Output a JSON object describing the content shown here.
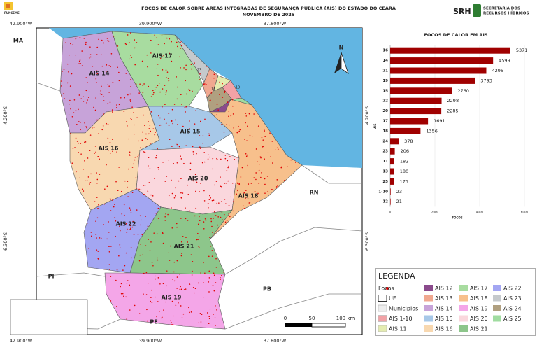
{
  "header": {
    "title": "FOCOS DE CALOR SOBRE ÁREAS INTEGRADAS DE SEGURANÇA PUBLICA (AIS) DO ESTADO DO CEARÁ",
    "subtitle": "NOVEMBRO DE 2025",
    "logo_left": "FUNCEME",
    "logo_right": "SRH",
    "logo_right_text": [
      "SECRETARIA DOS",
      "RECURSOS HÍDRICOS"
    ]
  },
  "map": {
    "coords_x": [
      "42.900°W",
      "39.900°W",
      "37.800°W"
    ],
    "coords_y": [
      "4.200°S",
      "6.300°S"
    ],
    "states": [
      "MA",
      "PI",
      "PE",
      "PB",
      "RN"
    ],
    "ais_labels": [
      "AIS 14",
      "AIS 17",
      "AIS 16",
      "AIS 15",
      "AIS 20",
      "AIS 18",
      "AIS 22",
      "AIS 21",
      "AIS 19"
    ],
    "ais_small": [
      "23",
      "11",
      "10"
    ],
    "north": "N",
    "scale": [
      "0",
      "50",
      "100 km"
    ],
    "credits": [
      "Sistema de Coordenadas",
      "Geográficas",
      "Datum Sirgas 2000",
      "Fonte: INPE-IBGE",
      "Elaboração: FUNCEME"
    ]
  },
  "legend": {
    "title": "LEGENDA",
    "items": [
      {
        "name": "Focos",
        "color": "#e00000"
      },
      {
        "name": "UF",
        "color": "#ffffff"
      },
      {
        "name": "Municipios",
        "color": "#eeeeee"
      },
      {
        "name": "AIS 1-10",
        "color": "#f2a2a6"
      },
      {
        "name": "AIS 11",
        "color": "#e4ecb0"
      },
      {
        "name": "AIS 12",
        "color": "#8a4a8c"
      },
      {
        "name": "AIS 13",
        "color": "#f0a890"
      },
      {
        "name": "AIS 14",
        "color": "#c7a3d9"
      },
      {
        "name": "AIS 15",
        "color": "#a7c8e8"
      },
      {
        "name": "AIS 16",
        "color": "#f8d8b0"
      },
      {
        "name": "AIS 17",
        "color": "#a8dca0"
      },
      {
        "name": "AIS 18",
        "color": "#f7c08c"
      },
      {
        "name": "AIS 19",
        "color": "#f4a6e8"
      },
      {
        "name": "AIS 20",
        "color": "#fad7dd"
      },
      {
        "name": "AIS 21",
        "color": "#8dc68b"
      },
      {
        "name": "AIS 22",
        "color": "#a3a6f2"
      },
      {
        "name": "AIS 23",
        "color": "#c5c9cc"
      },
      {
        "name": "AIS 24",
        "color": "#b0a080"
      },
      {
        "name": "AIS 25",
        "color": "#a0dca0"
      }
    ]
  },
  "chart_data": {
    "type": "barh",
    "title": "FOCOS DE CALOR EM AIS",
    "x_label": "FOCOS",
    "y_label": "AIS",
    "categories": [
      "16",
      "14",
      "21",
      "19",
      "15",
      "22",
      "20",
      "17",
      "18",
      "24",
      "23",
      "11",
      "13",
      "25",
      "1-10",
      "12"
    ],
    "values": [
      5371,
      4599,
      4296,
      3793,
      2760,
      2298,
      2285,
      1691,
      1356,
      378,
      206,
      182,
      180,
      175,
      23,
      21
    ],
    "color": "#a00000",
    "xlim": [
      0,
      6000
    ],
    "xticks": [
      0,
      2000,
      4000,
      6000
    ],
    "grid": true
  }
}
